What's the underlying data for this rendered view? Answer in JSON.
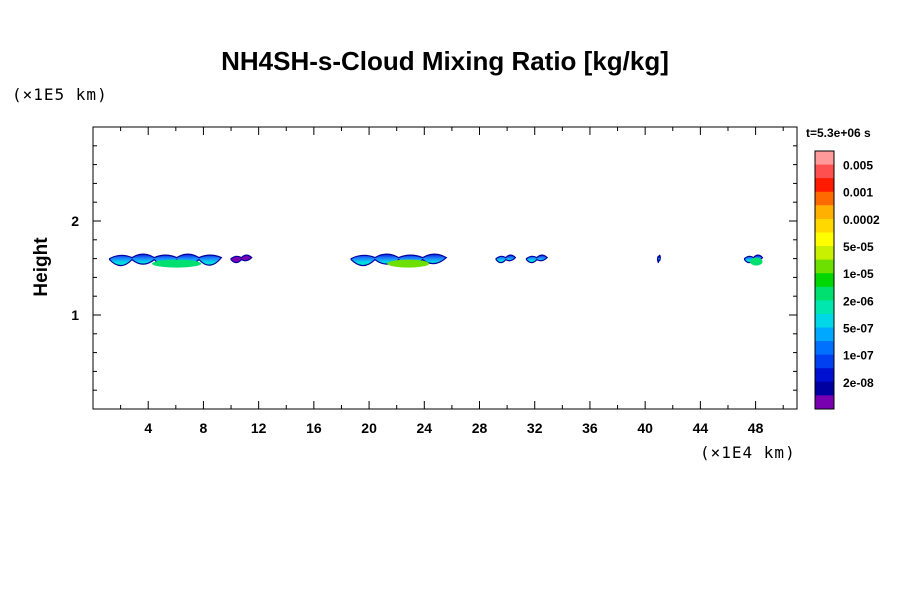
{
  "chart_data": {
    "type": "heatmap",
    "title": "NH4SH-s-Cloud Mixing Ratio [kg/kg]",
    "xlabel": "",
    "ylabel": "Height",
    "x_scale_label": "(×1E4 km)",
    "y_scale_label": "(×1E5 km)",
    "time_label": "t=5.3e+06 s",
    "xlim": [
      0,
      51
    ],
    "ylim": [
      0,
      3
    ],
    "x_ticks": [
      4,
      8,
      12,
      16,
      20,
      24,
      28,
      32,
      36,
      40,
      44,
      48
    ],
    "y_ticks": [
      1,
      2
    ],
    "colorbar": {
      "labels": [
        "0.005",
        "0.001",
        "0.0002",
        "5e-05",
        "1e-05",
        "2e-06",
        "5e-07",
        "1e-07",
        "2e-08"
      ],
      "colors": [
        "#ff9a9a",
        "#ff5050",
        "#ff1a00",
        "#ff6a00",
        "#ffb000",
        "#ffd800",
        "#ffff00",
        "#c8f000",
        "#6ee000",
        "#00d600",
        "#00e070",
        "#00e8b0",
        "#00d8e8",
        "#00a8ff",
        "#0070ff",
        "#0040f0",
        "#0010d0",
        "#0000a0",
        "#7800b0"
      ]
    },
    "cloud_level": 1.6,
    "cloud_patches": [
      {
        "x_start": 1.2,
        "x_end": 9.3,
        "max_value": "1e-05"
      },
      {
        "x_start": 10.0,
        "x_end": 11.5,
        "max_value": "2e-08"
      },
      {
        "x_start": 18.7,
        "x_end": 25.6,
        "max_value": "5e-05"
      },
      {
        "x_start": 29.2,
        "x_end": 30.6,
        "max_value": "1e-07"
      },
      {
        "x_start": 31.4,
        "x_end": 32.9,
        "max_value": "1e-07"
      },
      {
        "x_start": 40.9,
        "x_end": 41.1,
        "max_value": "1e-07"
      },
      {
        "x_start": 47.2,
        "x_end": 48.5,
        "max_value": "1e-05"
      }
    ]
  }
}
